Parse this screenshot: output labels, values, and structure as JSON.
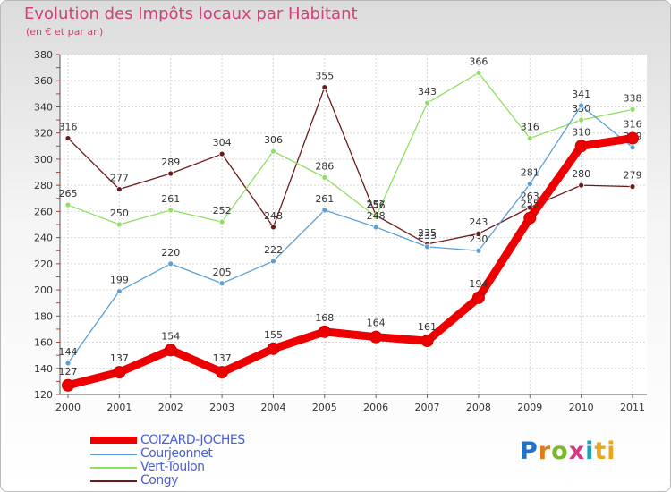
{
  "chart_data": {
    "type": "line",
    "title": "Evolution des Impôts locaux par Habitant",
    "subtitle": "(en € et par an)",
    "categories": [
      "2000",
      "2001",
      "2002",
      "2003",
      "2004",
      "2005",
      "2006",
      "2007",
      "2008",
      "2009",
      "2010",
      "2011"
    ],
    "ylim": [
      120,
      380
    ],
    "yticks": [
      120,
      140,
      160,
      180,
      200,
      220,
      240,
      260,
      280,
      300,
      320,
      340,
      360,
      380
    ],
    "series": [
      {
        "name": "Congy",
        "color": "#6b1a1a",
        "values": [
          316,
          277,
          289,
          304,
          248,
          355,
          257,
          235,
          243,
          263,
          280,
          279
        ]
      },
      {
        "name": "Vert-Toulon",
        "color": "#8ee060",
        "values": [
          265,
          250,
          261,
          252,
          306,
          286,
          256,
          343,
          366,
          316,
          330,
          338
        ]
      },
      {
        "name": "Courjeonnet",
        "color": "#5b9fd6",
        "values": [
          144,
          199,
          220,
          205,
          222,
          261,
          248,
          233,
          230,
          281,
          341,
          309
        ]
      },
      {
        "name": "COIZARD-JOCHES",
        "color": "#ee0000",
        "values": [
          127,
          137,
          154,
          137,
          155,
          168,
          164,
          161,
          194,
          255,
          310,
          316
        ]
      }
    ]
  },
  "legend": [
    {
      "name": "COIZARD-JOCHES",
      "color": "#ee0000",
      "text_color": "#4a5fd0"
    },
    {
      "name": "Courjeonnet",
      "color": "#5b9fd6",
      "text_color": "#4a5fd0"
    },
    {
      "name": "Vert-Toulon",
      "color": "#8ee060",
      "text_color": "#4a5fd0"
    },
    {
      "name": "Congy",
      "color": "#6b1a1a",
      "text_color": "#4a5fd0"
    }
  ],
  "logo": {
    "parts": [
      "P",
      "r",
      "o",
      "x",
      "i",
      "ti"
    ]
  }
}
